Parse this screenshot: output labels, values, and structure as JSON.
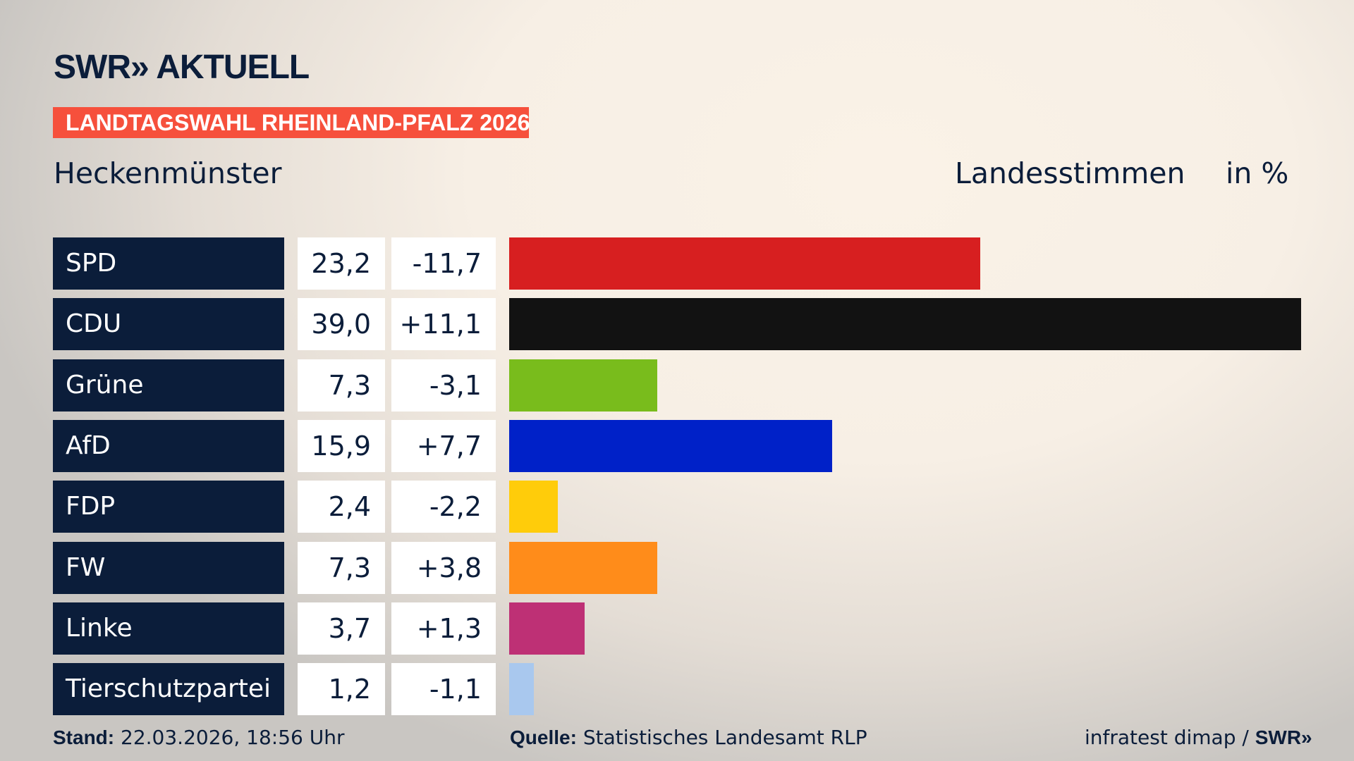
{
  "header": {
    "logo": "SWR» AKTUELL",
    "banner": "LANDTAGSWAHL RHEINLAND-PFALZ 2026",
    "location": "Heckenmünster",
    "measure": "Landesstimmen",
    "unit": "in %"
  },
  "chart_data": {
    "type": "bar",
    "orientation": "horizontal",
    "xlim": [
      0,
      39
    ],
    "categories": [
      "SPD",
      "CDU",
      "Grüne",
      "AfD",
      "FDP",
      "FW",
      "Linke",
      "Tierschutzpartei"
    ],
    "values": [
      23.2,
      39.0,
      7.3,
      15.9,
      2.4,
      7.3,
      3.7,
      1.2
    ],
    "value_labels": [
      "23,2",
      "39,0",
      "7,3",
      "15,9",
      "2,4",
      "7,3",
      "3,7",
      "1,2"
    ],
    "change_labels": [
      "-11,7",
      "+11,1",
      "-3,1",
      "+7,7",
      "-2,2",
      "+3,8",
      "+1,3",
      "-1,1"
    ],
    "colors": [
      "#d71f20",
      "#121212",
      "#79bc1c",
      "#0021c8",
      "#ffcc0a",
      "#ff8c1a",
      "#be3075",
      "#a9c8ee"
    ]
  },
  "footer": {
    "stand_label": "Stand:",
    "stand_value": " 22.03.2026, 18:56 Uhr",
    "source_label": "Quelle:",
    "source_value": " Statistisches Landesamt RLP",
    "credit": "infratest dimap / ",
    "credit_logo": "SWR»"
  }
}
